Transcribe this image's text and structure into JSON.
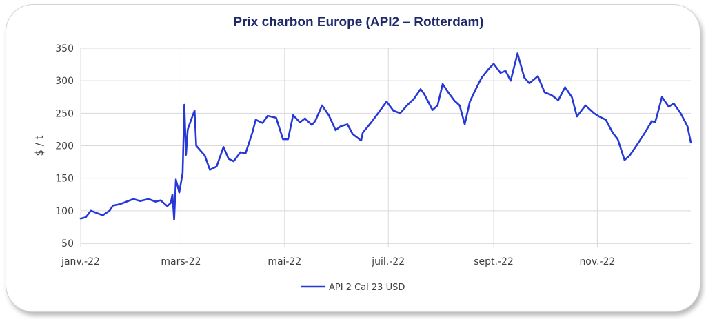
{
  "chart_data": {
    "type": "line",
    "title": "Prix charbon Europe (API2 – Rotterdam)",
    "xlabel": "",
    "ylabel": "$ / t",
    "ylim": [
      50,
      350
    ],
    "yticks": [
      50,
      100,
      150,
      200,
      250,
      300,
      350
    ],
    "xtick_labels": [
      "janv.-22",
      "mars-22",
      "mai-22",
      "juil.-22",
      "sept.-22",
      "nov.-22"
    ],
    "xtick_dates": [
      "2022-01-01",
      "2022-03-01",
      "2022-05-01",
      "2022-07-01",
      "2022-09-01",
      "2022-11-01"
    ],
    "xlim": [
      "2022-01-01",
      "2022-12-26"
    ],
    "grid": "horizontal",
    "legend_position": "bottom",
    "series": [
      {
        "name": "API 2 Cal 23 USD",
        "color": "#2638d6",
        "x": [
          "2022-01-01",
          "2022-01-04",
          "2022-01-07",
          "2022-01-10",
          "2022-01-14",
          "2022-01-18",
          "2022-01-20",
          "2022-01-24",
          "2022-01-28",
          "2022-02-01",
          "2022-02-05",
          "2022-02-10",
          "2022-02-14",
          "2022-02-17",
          "2022-02-21",
          "2022-02-23",
          "2022-02-24",
          "2022-02-25",
          "2022-02-26",
          "2022-02-28",
          "2022-03-02",
          "2022-03-03",
          "2022-03-04",
          "2022-03-05",
          "2022-03-07",
          "2022-03-09",
          "2022-03-10",
          "2022-03-15",
          "2022-03-18",
          "2022-03-22",
          "2022-03-26",
          "2022-03-29",
          "2022-04-01",
          "2022-04-05",
          "2022-04-08",
          "2022-04-12",
          "2022-04-14",
          "2022-04-18",
          "2022-04-21",
          "2022-04-26",
          "2022-04-30",
          "2022-05-03",
          "2022-05-06",
          "2022-05-10",
          "2022-05-13",
          "2022-05-17",
          "2022-05-19",
          "2022-05-23",
          "2022-05-27",
          "2022-05-31",
          "2022-06-03",
          "2022-06-07",
          "2022-06-10",
          "2022-06-14",
          "2022-06-15",
          "2022-06-16",
          "2022-06-21",
          "2022-06-25",
          "2022-06-30",
          "2022-07-04",
          "2022-07-08",
          "2022-07-12",
          "2022-07-16",
          "2022-07-20",
          "2022-07-22",
          "2022-07-27",
          "2022-07-30",
          "2022-08-02",
          "2022-08-05",
          "2022-08-09",
          "2022-08-12",
          "2022-08-15",
          "2022-08-18",
          "2022-08-22",
          "2022-08-25",
          "2022-08-29",
          "2022-09-01",
          "2022-09-05",
          "2022-09-08",
          "2022-09-11",
          "2022-09-15",
          "2022-09-19",
          "2022-09-22",
          "2022-09-27",
          "2022-10-01",
          "2022-10-05",
          "2022-10-09",
          "2022-10-13",
          "2022-10-17",
          "2022-10-20",
          "2022-10-25",
          "2022-10-30",
          "2022-11-02",
          "2022-11-06",
          "2022-11-10",
          "2022-11-13",
          "2022-11-17",
          "2022-11-20",
          "2022-11-24",
          "2022-11-29",
          "2022-12-03",
          "2022-12-05",
          "2022-12-06",
          "2022-12-09",
          "2022-12-13",
          "2022-12-16",
          "2022-12-20",
          "2022-12-24",
          "2022-12-26"
        ],
        "y": [
          88,
          90,
          100,
          97,
          93,
          100,
          108,
          110,
          114,
          118,
          115,
          118,
          114,
          116,
          107,
          112,
          125,
          86,
          148,
          128,
          158,
          263,
          186,
          225,
          240,
          254,
          200,
          185,
          163,
          168,
          198,
          180,
          176,
          190,
          188,
          220,
          240,
          235,
          246,
          243,
          210,
          210,
          247,
          236,
          242,
          232,
          238,
          262,
          247,
          224,
          230,
          233,
          218,
          210,
          208,
          220,
          236,
          250,
          268,
          254,
          250,
          262,
          272,
          287,
          280,
          255,
          262,
          295,
          283,
          269,
          262,
          233,
          268,
          290,
          305,
          318,
          326,
          312,
          315,
          300,
          342,
          305,
          296,
          307,
          282,
          278,
          270,
          290,
          275,
          245,
          262,
          250,
          245,
          240,
          220,
          210,
          178,
          185,
          200,
          220,
          238,
          236,
          245,
          275,
          260,
          265,
          250,
          230,
          205
        ]
      }
    ]
  }
}
